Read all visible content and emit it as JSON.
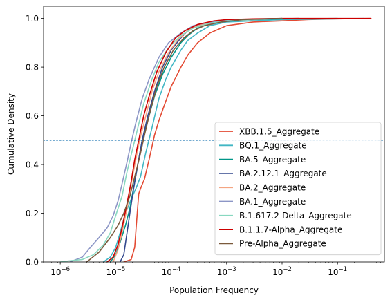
{
  "chart_data": {
    "type": "line",
    "title": "",
    "xlabel": "Population Frequency",
    "ylabel": "Cumulative Density",
    "xscale": "log",
    "xlim": [
      5e-07,
      0.7
    ],
    "ylim": [
      0.0,
      1.05
    ],
    "grid": false,
    "legend_position": "lower right",
    "x_ticks": [
      {
        "value": 1e-06,
        "base": "10",
        "exp": "−6"
      },
      {
        "value": 1e-05,
        "base": "10",
        "exp": "−5"
      },
      {
        "value": 0.0001,
        "base": "10",
        "exp": "−4"
      },
      {
        "value": 0.001,
        "base": "10",
        "exp": "−3"
      },
      {
        "value": 0.01,
        "base": "10",
        "exp": "−2"
      },
      {
        "value": 0.1,
        "base": "10",
        "exp": "−1"
      }
    ],
    "y_ticks": [
      {
        "value": 0.0,
        "label": "0.0"
      },
      {
        "value": 0.2,
        "label": "0.2"
      },
      {
        "value": 0.4,
        "label": "0.4"
      },
      {
        "value": 0.6,
        "label": "0.6"
      },
      {
        "value": 0.8,
        "label": "0.8"
      },
      {
        "value": 1.0,
        "label": "1.0"
      }
    ],
    "reference_line": {
      "y": 0.5,
      "style": "dotted",
      "color": "#1f77b4"
    },
    "series": [
      {
        "name": "XBB.1.5_Aggregate",
        "color": "#e34a33",
        "points": [
          [
            1.4e-05,
            0
          ],
          [
            1.9e-05,
            0.01
          ],
          [
            2.2e-05,
            0.06
          ],
          [
            2.35e-05,
            0.15
          ],
          [
            2.6e-05,
            0.28
          ],
          [
            2.9e-05,
            0.31
          ],
          [
            3.3e-05,
            0.34
          ],
          [
            4e-05,
            0.42
          ],
          [
            5e-05,
            0.52
          ],
          [
            6e-05,
            0.58
          ],
          [
            8e-05,
            0.66
          ],
          [
            0.0001,
            0.72
          ],
          [
            0.00015,
            0.8
          ],
          [
            0.0002,
            0.85
          ],
          [
            0.0003,
            0.9
          ],
          [
            0.0005,
            0.94
          ],
          [
            0.001,
            0.97
          ],
          [
            0.003,
            0.985
          ],
          [
            0.01,
            0.99
          ],
          [
            0.03,
            0.995
          ],
          [
            0.1,
            0.998
          ],
          [
            0.2,
            0.999
          ],
          [
            0.4,
            1.0
          ]
        ]
      },
      {
        "name": "BQ.1_Aggregate",
        "color": "#41b6c4",
        "points": [
          [
            6e-06,
            0
          ],
          [
            8e-06,
            0.02
          ],
          [
            1e-05,
            0.06
          ],
          [
            1.2e-05,
            0.12
          ],
          [
            1.5e-05,
            0.2
          ],
          [
            2e-05,
            0.27
          ],
          [
            2.3e-05,
            0.3
          ],
          [
            2.8e-05,
            0.35
          ],
          [
            3.5e-05,
            0.45
          ],
          [
            4.5e-05,
            0.55
          ],
          [
            6e-05,
            0.67
          ],
          [
            8e-05,
            0.75
          ],
          [
            0.0001,
            0.8
          ],
          [
            0.00015,
            0.87
          ],
          [
            0.0002,
            0.91
          ],
          [
            0.0003,
            0.94
          ],
          [
            0.0005,
            0.97
          ],
          [
            0.001,
            0.985
          ],
          [
            0.003,
            0.99
          ],
          [
            0.01,
            0.995
          ],
          [
            0.1,
            0.998
          ],
          [
            0.3,
            1.0
          ]
        ]
      },
      {
        "name": "BA.5_Aggregate",
        "color": "#009688",
        "points": [
          [
            8e-06,
            0
          ],
          [
            1e-05,
            0.03
          ],
          [
            1.2e-05,
            0.08
          ],
          [
            1.5e-05,
            0.15
          ],
          [
            1.8e-05,
            0.22
          ],
          [
            2.2e-05,
            0.33
          ],
          [
            2.6e-05,
            0.42
          ],
          [
            3e-05,
            0.5
          ],
          [
            4e-05,
            0.6
          ],
          [
            5e-05,
            0.68
          ],
          [
            7e-05,
            0.77
          ],
          [
            0.0001,
            0.84
          ],
          [
            0.00015,
            0.9
          ],
          [
            0.0002,
            0.93
          ],
          [
            0.0003,
            0.96
          ],
          [
            0.0005,
            0.98
          ],
          [
            0.001,
            0.99
          ],
          [
            0.003,
            0.995
          ],
          [
            0.01,
            0.998
          ],
          [
            0.1,
            1.0
          ]
        ]
      },
      {
        "name": "BA.2.12.1_Aggregate",
        "color": "#34488e",
        "points": [
          [
            1.2e-05,
            0
          ],
          [
            1.4e-05,
            0.03
          ],
          [
            1.6e-05,
            0.12
          ],
          [
            1.8e-05,
            0.2
          ],
          [
            2.1e-05,
            0.3
          ],
          [
            2.5e-05,
            0.4
          ],
          [
            3e-05,
            0.5
          ],
          [
            3.8e-05,
            0.6
          ],
          [
            5e-05,
            0.7
          ],
          [
            7e-05,
            0.8
          ],
          [
            0.0001,
            0.87
          ],
          [
            0.00015,
            0.92
          ],
          [
            0.0002,
            0.95
          ],
          [
            0.0003,
            0.97
          ],
          [
            0.0005,
            0.98
          ],
          [
            0.001,
            0.99
          ],
          [
            0.005,
            0.998
          ],
          [
            0.02,
            1.0
          ]
        ]
      },
      {
        "name": "BA.2_Aggregate",
        "color": "#f4a582",
        "points": [
          [
            9e-06,
            0
          ],
          [
            1.1e-05,
            0.05
          ],
          [
            1.3e-05,
            0.12
          ],
          [
            1.6e-05,
            0.22
          ],
          [
            1.9e-05,
            0.32
          ],
          [
            2.3e-05,
            0.42
          ],
          [
            2.7e-05,
            0.5
          ],
          [
            3.5e-05,
            0.6
          ],
          [
            4.5e-05,
            0.7
          ],
          [
            6e-05,
            0.78
          ],
          [
            9e-05,
            0.86
          ],
          [
            0.00013,
            0.91
          ],
          [
            0.0002,
            0.95
          ],
          [
            0.0003,
            0.97
          ],
          [
            0.0005,
            0.98
          ],
          [
            0.001,
            0.99
          ],
          [
            0.005,
            0.998
          ],
          [
            0.02,
            1.0
          ]
        ]
      },
      {
        "name": "BA.1_Aggregate",
        "color": "#8c96c6",
        "points": [
          [
            1.5e-06,
            0
          ],
          [
            2.5e-06,
            0.02
          ],
          [
            3.5e-06,
            0.06
          ],
          [
            5e-06,
            0.1
          ],
          [
            7e-06,
            0.14
          ],
          [
            9e-06,
            0.19
          ],
          [
            1.1e-05,
            0.25
          ],
          [
            1.3e-05,
            0.32
          ],
          [
            1.6e-05,
            0.41
          ],
          [
            1.9e-05,
            0.49
          ],
          [
            2.3e-05,
            0.57
          ],
          [
            3e-05,
            0.67
          ],
          [
            4e-05,
            0.75
          ],
          [
            6e-05,
            0.84
          ],
          [
            9e-05,
            0.9
          ],
          [
            0.00015,
            0.94
          ],
          [
            0.00025,
            0.97
          ],
          [
            0.0005,
            0.985
          ],
          [
            0.001,
            0.992
          ],
          [
            0.003,
            0.997
          ],
          [
            0.01,
            1.0
          ]
        ]
      },
      {
        "name": "B.1.617.2-Delta_Aggregate",
        "color": "#88d8c0",
        "points": [
          [
            1e-06,
            0
          ],
          [
            1.5e-06,
            0.005
          ],
          [
            2.5e-06,
            0.01
          ],
          [
            4e-06,
            0.03
          ],
          [
            6e-06,
            0.07
          ],
          [
            8e-06,
            0.12
          ],
          [
            1e-05,
            0.19
          ],
          [
            1.3e-05,
            0.27
          ],
          [
            1.6e-05,
            0.37
          ],
          [
            2e-05,
            0.46
          ],
          [
            2.5e-05,
            0.55
          ],
          [
            3.2e-05,
            0.65
          ],
          [
            4.5e-05,
            0.75
          ],
          [
            6e-05,
            0.82
          ],
          [
            9e-05,
            0.88
          ],
          [
            0.00015,
            0.93
          ],
          [
            0.00025,
            0.96
          ],
          [
            0.0005,
            0.98
          ],
          [
            0.001,
            0.99
          ],
          [
            0.003,
            0.995
          ],
          [
            0.01,
            1.0
          ]
        ]
      },
      {
        "name": "B.1.1.7-Alpha_Aggregate",
        "color": "#cc0000",
        "points": [
          [
            7e-06,
            0
          ],
          [
            9e-06,
            0.02
          ],
          [
            1.1e-05,
            0.07
          ],
          [
            1.3e-05,
            0.14
          ],
          [
            1.6e-05,
            0.24
          ],
          [
            1.9e-05,
            0.33
          ],
          [
            2.2e-05,
            0.42
          ],
          [
            2.6e-05,
            0.5
          ],
          [
            3.2e-05,
            0.6
          ],
          [
            4e-05,
            0.68
          ],
          [
            5.5e-05,
            0.78
          ],
          [
            8e-05,
            0.86
          ],
          [
            0.00012,
            0.92
          ],
          [
            0.00018,
            0.95
          ],
          [
            0.0003,
            0.975
          ],
          [
            0.0006,
            0.99
          ],
          [
            0.001,
            0.995
          ],
          [
            0.003,
            0.998
          ],
          [
            0.01,
            1.0
          ],
          [
            0.1,
            1.0
          ],
          [
            0.4,
            1.0
          ]
        ]
      },
      {
        "name": "Pre-Alpha_Aggregate",
        "color": "#7b5a3c",
        "points": [
          [
            3e-06,
            0
          ],
          [
            5e-06,
            0.04
          ],
          [
            8e-06,
            0.1
          ],
          [
            1.1e-05,
            0.15
          ],
          [
            1.4e-05,
            0.2
          ],
          [
            1.8e-05,
            0.27
          ],
          [
            2.2e-05,
            0.35
          ],
          [
            2.7e-05,
            0.43
          ],
          [
            3.3e-05,
            0.52
          ],
          [
            4.2e-05,
            0.62
          ],
          [
            5.5e-05,
            0.72
          ],
          [
            7.5e-05,
            0.8
          ],
          [
            0.00011,
            0.87
          ],
          [
            0.00017,
            0.92
          ],
          [
            0.00025,
            0.95
          ],
          [
            0.0004,
            0.97
          ],
          [
            0.0008,
            0.985
          ],
          [
            0.002,
            0.995
          ],
          [
            0.01,
            1.0
          ]
        ]
      }
    ]
  }
}
